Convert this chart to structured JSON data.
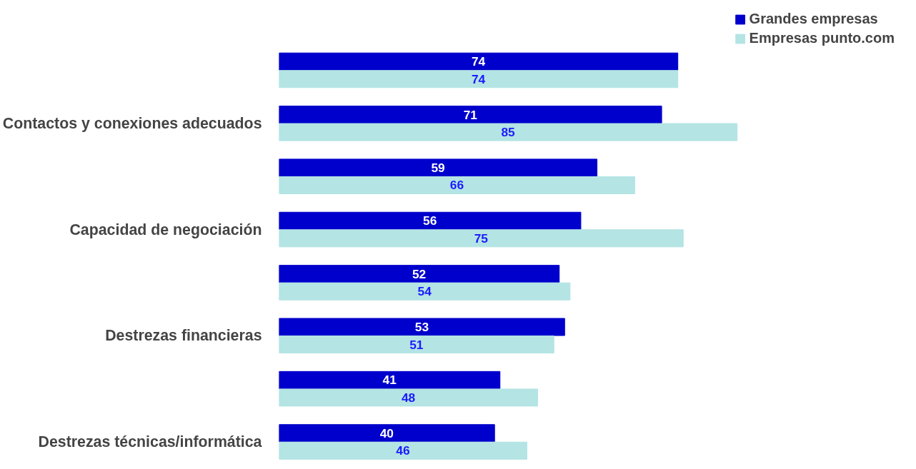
{
  "chart_data": {
    "type": "bar",
    "orientation": "horizontal",
    "categories": [
      null,
      "Contactos y conexiones adecuados",
      null,
      "Capacidad de negociación",
      null,
      "Destrezas financieras",
      null,
      "Destrezas técnicas/informática"
    ],
    "series": [
      {
        "name": "Grandes empresas",
        "color": "#0000cc",
        "values": [
          74,
          71,
          59,
          56,
          52,
          53,
          41,
          40
        ]
      },
      {
        "name": "Empresas punto.com",
        "color": "#b4e4e4",
        "values": [
          74,
          85,
          66,
          75,
          54,
          51,
          48,
          46
        ]
      }
    ],
    "data_labels": true,
    "legend": "top right",
    "grid": false
  }
}
